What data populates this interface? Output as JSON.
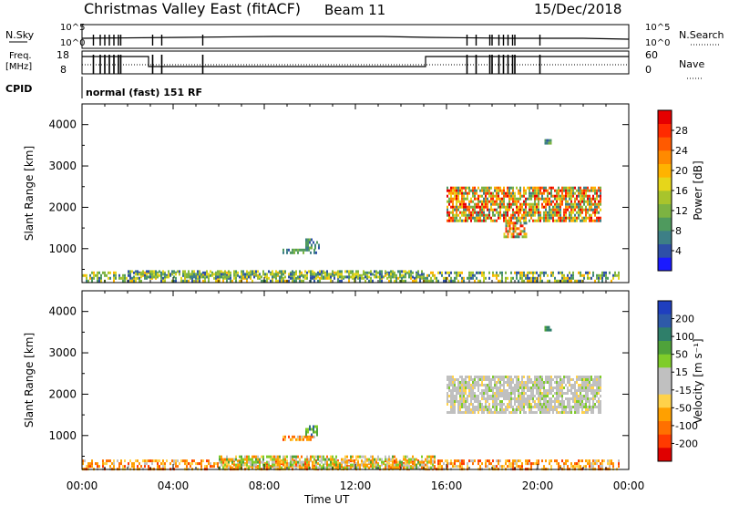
{
  "header": {
    "title": "Christmas Valley East (fitACF)",
    "beam": "Beam 11",
    "date": "15/Dec/2018"
  },
  "params": {
    "nsky_label": "N.Sky",
    "nsky_ticks": [
      "10^5",
      "10^0"
    ],
    "nsearch_label": "N.Search",
    "nsearch_ticks": [
      "10^5",
      "10^0"
    ],
    "freq_label": [
      "Freq.",
      "[MHz]"
    ],
    "freq_ticks": [
      "18",
      "8"
    ],
    "nave_label": "Nave",
    "nave_ticks": [
      "60",
      "0"
    ],
    "cpid_label": "CPID",
    "cpid_value": "normal (fast) 151 RF"
  },
  "axes": {
    "xticks": [
      "00:00",
      "04:00",
      "08:00",
      "12:00",
      "16:00",
      "20:00",
      "00:00"
    ],
    "xlabel": "Time UT",
    "yticks": [
      "1000",
      "2000",
      "3000",
      "4000"
    ],
    "ylabel": "Slant Range [km]"
  },
  "colorbars": {
    "power": {
      "label": "Power [dB]",
      "ticks": [
        "4",
        "8",
        "12",
        "16",
        "20",
        "24",
        "28"
      ],
      "colors": [
        "#1a1aff",
        "#2e4fa8",
        "#3d7f86",
        "#4f9a5e",
        "#7cb342",
        "#a8c42c",
        "#e6d61a",
        "#ffb300",
        "#ff8a00",
        "#ff5a00",
        "#ff2a00",
        "#e60000"
      ]
    },
    "velocity": {
      "label": "Velocity [m s⁻¹]",
      "ticks": [
        "200",
        "100",
        "50",
        "15",
        "-15",
        "-50",
        "-100",
        "-200"
      ],
      "colors": [
        "#1f3fbf",
        "#2e5aa8",
        "#2f7f6a",
        "#4fa23a",
        "#7fcc2a",
        "#c0c0c0",
        "#c0c0c0",
        "#ffd24a",
        "#ffa000",
        "#ff7000",
        "#ff3a00",
        "#e00000"
      ]
    }
  },
  "chart_data": [
    {
      "type": "heatmap",
      "name": "power",
      "x_range_hours": [
        0,
        24
      ],
      "y_range_km": [
        180,
        4500
      ],
      "regions": [
        {
          "t": [
            0.0,
            23.6
          ],
          "r": [
            200,
            450
          ],
          "level": "low",
          "density": 0.55
        },
        {
          "t": [
            2.0,
            15.0
          ],
          "r": [
            300,
            480
          ],
          "level": "low-mid",
          "density": 0.6
        },
        {
          "t": [
            8.8,
            10.3
          ],
          "r": [
            880,
            1000
          ],
          "level": "mid",
          "density": 0.7
        },
        {
          "t": [
            9.8,
            10.4
          ],
          "r": [
            1050,
            1250
          ],
          "level": "mid",
          "density": 0.7
        },
        {
          "t": [
            16.0,
            22.8
          ],
          "r": [
            1650,
            2500
          ],
          "level": "high",
          "density": 0.75
        },
        {
          "t": [
            18.5,
            19.5
          ],
          "r": [
            1280,
            1650
          ],
          "level": "high",
          "density": 0.7
        },
        {
          "t": [
            20.3,
            20.6
          ],
          "r": [
            3550,
            3650
          ],
          "level": "mid",
          "density": 0.6
        }
      ]
    },
    {
      "type": "heatmap",
      "name": "velocity",
      "x_range_hours": [
        0,
        24
      ],
      "y_range_km": [
        180,
        4500
      ],
      "regions": [
        {
          "t": [
            0.0,
            23.6
          ],
          "r": [
            200,
            420
          ],
          "level": "negative",
          "density": 0.55
        },
        {
          "t": [
            6.0,
            15.5
          ],
          "r": [
            250,
            520
          ],
          "level": "mixed",
          "density": 0.65
        },
        {
          "t": [
            8.8,
            10.2
          ],
          "r": [
            900,
            1000
          ],
          "level": "negative",
          "density": 0.7
        },
        {
          "t": [
            9.8,
            10.3
          ],
          "r": [
            1050,
            1250
          ],
          "level": "positive",
          "density": 0.7
        },
        {
          "t": [
            16.0,
            22.8
          ],
          "r": [
            1550,
            2450
          ],
          "level": "near-zero",
          "density": 0.8
        },
        {
          "t": [
            20.3,
            20.6
          ],
          "r": [
            3550,
            3650
          ],
          "level": "positive",
          "density": 0.6
        }
      ]
    }
  ]
}
